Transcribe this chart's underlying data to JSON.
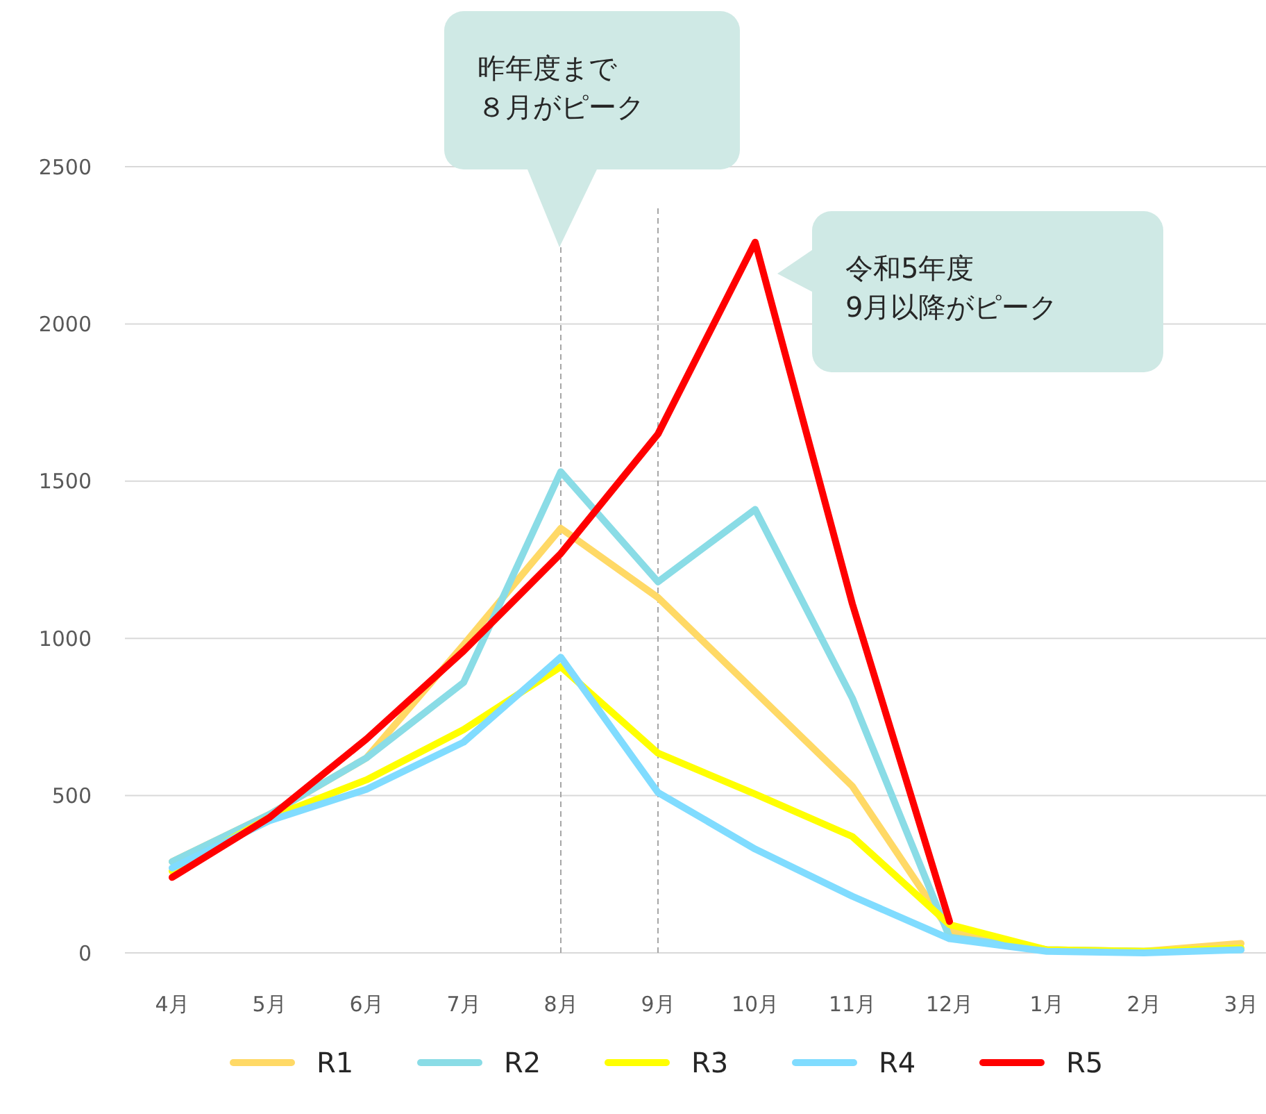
{
  "chart_data": {
    "type": "line",
    "categories": [
      "4月",
      "5月",
      "6月",
      "7月",
      "8月",
      "9月",
      "10月",
      "11月",
      "12月",
      "1月",
      "2月",
      "3月"
    ],
    "series": [
      {
        "name": "R1",
        "color": "#ffd966",
        "values": [
          290,
          440,
          620,
          980,
          1350,
          1130,
          830,
          530,
          70,
          10,
          5,
          30
        ]
      },
      {
        "name": "R2",
        "color": "#8adce6",
        "values": [
          290,
          440,
          620,
          860,
          1530,
          1180,
          1410,
          810,
          50,
          10,
          5,
          10
        ]
      },
      {
        "name": "R3",
        "color": "#ffff00",
        "values": [
          260,
          430,
          550,
          710,
          910,
          635,
          505,
          370,
          90,
          10,
          5,
          15
        ]
      },
      {
        "name": "R4",
        "color": "#80dcff",
        "values": [
          270,
          420,
          520,
          670,
          940,
          510,
          330,
          180,
          45,
          5,
          0,
          10
        ]
      },
      {
        "name": "R5",
        "color": "#ff0000",
        "values": [
          240,
          430,
          680,
          960,
          1270,
          1650,
          2260,
          1110,
          100,
          null,
          null,
          null
        ]
      }
    ],
    "ylim": [
      0,
      2500
    ],
    "yticks": [
      0,
      500,
      1000,
      1500,
      2000,
      2500
    ],
    "grid": "y",
    "legend": "bottom",
    "marker": "none",
    "line_style": "solid",
    "ref_lines": [
      {
        "axis": "x",
        "value": "8月",
        "color": "#a6a6a6",
        "line_style": "dashed"
      },
      {
        "axis": "x",
        "value": "9月",
        "color": "#a6a6a6",
        "line_style": "dashed"
      }
    ],
    "annotations": [
      "昨年度まで",
      "８月がピーク",
      "令和5年度",
      "9月以降がピーク"
    ]
  }
}
